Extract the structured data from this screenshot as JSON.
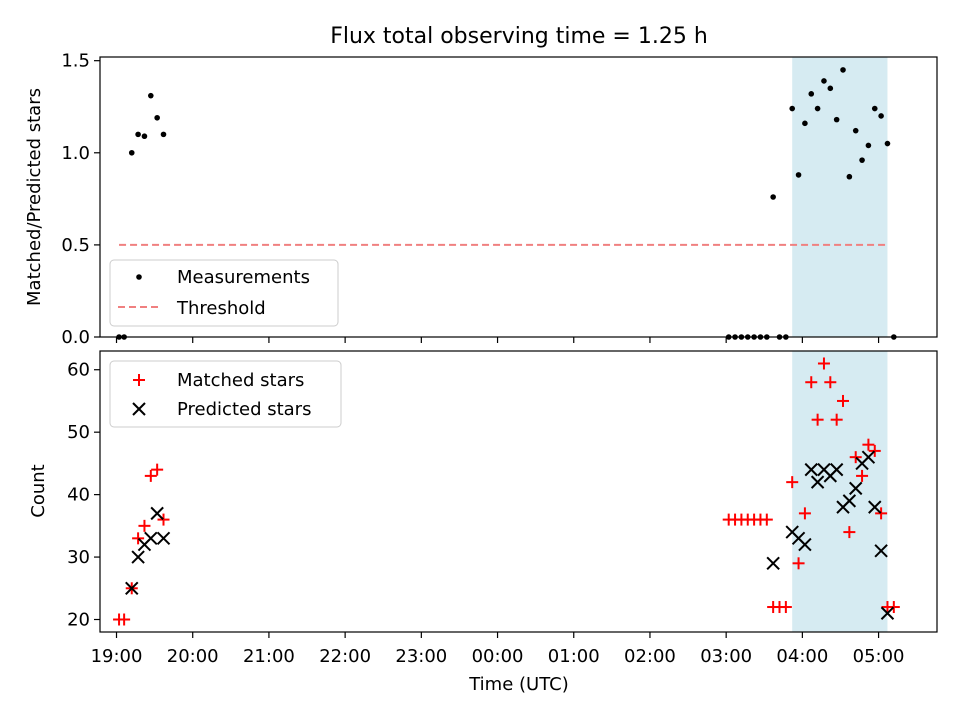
{
  "figure": {
    "title": "Flux total observing time = 1.25 h"
  },
  "chart_data": [
    {
      "type": "scatter",
      "xlabel": "",
      "ylabel": "Matched/Predicted stars",
      "xlim": [
        "18:47",
        "05:46"
      ],
      "ylim": [
        0,
        1.52
      ],
      "y_ticks": [
        "0.0",
        "0.5",
        "1.0",
        "1.5"
      ],
      "highlight_span": {
        "from": "03:52",
        "to": "05:07",
        "color": "#add8e6"
      },
      "legend": {
        "position": "lower-left",
        "entries": [
          "Measurements",
          "Threshold"
        ]
      },
      "series": [
        {
          "name": "Measurements",
          "marker": "dot",
          "color": "#000000",
          "points": [
            [
              "19:02",
              0
            ],
            [
              "19:06",
              0
            ],
            [
              "19:12",
              1.0
            ],
            [
              "19:17",
              1.1
            ],
            [
              "19:22",
              1.09
            ],
            [
              "19:27",
              1.31
            ],
            [
              "19:32",
              1.19
            ],
            [
              "19:37",
              1.1
            ],
            [
              "03:02",
              0
            ],
            [
              "03:07",
              0
            ],
            [
              "03:12",
              0
            ],
            [
              "03:17",
              0
            ],
            [
              "03:22",
              0
            ],
            [
              "03:27",
              0
            ],
            [
              "03:32",
              0
            ],
            [
              "03:37",
              0.76
            ],
            [
              "03:42",
              0
            ],
            [
              "03:47",
              0
            ],
            [
              "03:52",
              1.24
            ],
            [
              "03:57",
              0.88
            ],
            [
              "04:02",
              1.16
            ],
            [
              "04:07",
              1.32
            ],
            [
              "04:12",
              1.24
            ],
            [
              "04:17",
              1.39
            ],
            [
              "04:22",
              1.35
            ],
            [
              "04:27",
              1.18
            ],
            [
              "04:32",
              1.45
            ],
            [
              "04:37",
              0.87
            ],
            [
              "04:42",
              1.12
            ],
            [
              "04:47",
              0.96
            ],
            [
              "04:52",
              1.04
            ],
            [
              "04:57",
              1.24
            ],
            [
              "05:02",
              1.2
            ],
            [
              "05:07",
              1.05
            ],
            [
              "05:12",
              0
            ]
          ]
        },
        {
          "name": "Threshold",
          "style": "dashed",
          "color": "#f08080",
          "points": [
            [
              "19:02",
              0.5
            ],
            [
              "05:07",
              0.5
            ]
          ]
        }
      ]
    },
    {
      "type": "scatter",
      "xlabel": "Time (UTC)",
      "ylabel": "Count",
      "xlim": [
        "18:47",
        "05:46"
      ],
      "ylim": [
        18,
        63
      ],
      "y_ticks": [
        "20",
        "30",
        "40",
        "50",
        "60"
      ],
      "x_ticks": [
        "19:00",
        "20:00",
        "21:00",
        "22:00",
        "23:00",
        "00:00",
        "01:00",
        "02:00",
        "03:00",
        "04:00",
        "05:00"
      ],
      "highlight_span": {
        "from": "03:52",
        "to": "05:07",
        "color": "#add8e6"
      },
      "legend": {
        "position": "upper-left",
        "entries": [
          "Matched stars",
          "Predicted stars"
        ]
      },
      "series": [
        {
          "name": "Matched stars",
          "marker": "plus",
          "color": "#ff0000",
          "points": [
            [
              "19:02",
              20
            ],
            [
              "19:06",
              20
            ],
            [
              "19:12",
              25
            ],
            [
              "19:17",
              33
            ],
            [
              "19:22",
              35
            ],
            [
              "19:27",
              43
            ],
            [
              "19:32",
              44
            ],
            [
              "19:37",
              36
            ],
            [
              "03:02",
              36
            ],
            [
              "03:07",
              36
            ],
            [
              "03:12",
              36
            ],
            [
              "03:17",
              36
            ],
            [
              "03:22",
              36
            ],
            [
              "03:27",
              36
            ],
            [
              "03:32",
              36
            ],
            [
              "03:37",
              22
            ],
            [
              "03:42",
              22
            ],
            [
              "03:47",
              22
            ],
            [
              "03:52",
              42
            ],
            [
              "03:57",
              29
            ],
            [
              "04:02",
              37
            ],
            [
              "04:07",
              58
            ],
            [
              "04:12",
              52
            ],
            [
              "04:17",
              61
            ],
            [
              "04:22",
              58
            ],
            [
              "04:27",
              52
            ],
            [
              "04:32",
              55
            ],
            [
              "04:37",
              34
            ],
            [
              "04:42",
              46
            ],
            [
              "04:47",
              43
            ],
            [
              "04:52",
              48
            ],
            [
              "04:57",
              47
            ],
            [
              "05:02",
              37
            ],
            [
              "05:07",
              22
            ],
            [
              "05:12",
              22
            ]
          ]
        },
        {
          "name": "Predicted stars",
          "marker": "x",
          "color": "#000000",
          "points": [
            [
              "19:12",
              25
            ],
            [
              "19:17",
              30
            ],
            [
              "19:22",
              32
            ],
            [
              "19:27",
              33
            ],
            [
              "19:32",
              37
            ],
            [
              "19:37",
              33
            ],
            [
              "03:37",
              29
            ],
            [
              "03:52",
              34
            ],
            [
              "03:57",
              33
            ],
            [
              "04:02",
              32
            ],
            [
              "04:07",
              44
            ],
            [
              "04:12",
              42
            ],
            [
              "04:17",
              44
            ],
            [
              "04:22",
              43
            ],
            [
              "04:27",
              44
            ],
            [
              "04:32",
              38
            ],
            [
              "04:37",
              39
            ],
            [
              "04:42",
              41
            ],
            [
              "04:47",
              45
            ],
            [
              "04:52",
              46
            ],
            [
              "04:57",
              38
            ],
            [
              "05:02",
              31
            ],
            [
              "05:07",
              21
            ]
          ]
        }
      ]
    }
  ]
}
